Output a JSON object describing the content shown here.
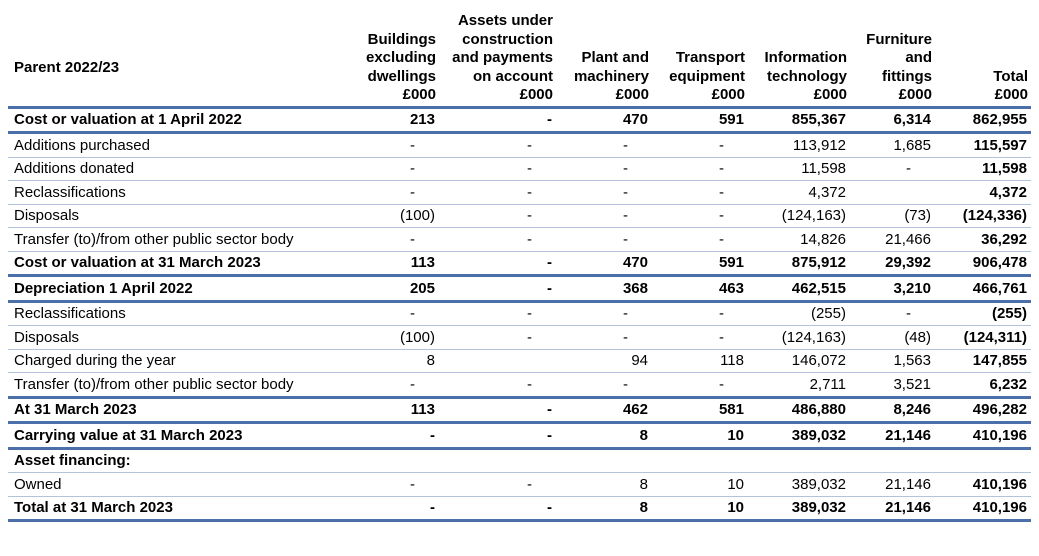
{
  "table": {
    "corner_label": "Parent 2022/23",
    "columns": [
      [
        "Buildings",
        "excluding",
        "dwellings",
        "£000"
      ],
      [
        "Assets under",
        "construction",
        "and payments",
        "on account",
        "£000"
      ],
      [
        "Plant and",
        "machinery",
        "£000"
      ],
      [
        "Transport",
        "equipment",
        "£000"
      ],
      [
        "Information",
        "technology",
        "£000"
      ],
      [
        "Furniture",
        "and",
        "fittings",
        "£000"
      ],
      [
        "Total",
        "£000"
      ]
    ],
    "rows": [
      {
        "label": "Cost or valuation at 1 April 2022",
        "values": [
          "213",
          "-",
          "470",
          "591",
          "855,367",
          "6,314",
          "862,955"
        ],
        "style": "major"
      },
      {
        "label": "Additions purchased",
        "values": [
          "-",
          "-",
          "-",
          "-",
          "113,912",
          "1,685",
          "115,597"
        ],
        "style": "normal"
      },
      {
        "label": "Additions donated",
        "values": [
          "-",
          "-",
          "-",
          "-",
          "11,598",
          "-",
          "11,598"
        ],
        "style": "normal"
      },
      {
        "label": "Reclassifications",
        "values": [
          "-",
          "-",
          "-",
          "-",
          "4,372",
          "",
          "4,372"
        ],
        "style": "normal"
      },
      {
        "label": "Disposals",
        "values": [
          "(100)",
          "-",
          "-",
          "-",
          "(124,163)",
          "(73)",
          "(124,336)"
        ],
        "style": "normal"
      },
      {
        "label": "Transfer (to)/from other public sector body",
        "values": [
          "-",
          "-",
          "-",
          "-",
          "14,826",
          "21,466",
          "36,292"
        ],
        "style": "normal"
      },
      {
        "label": "Cost or valuation at 31 March 2023",
        "values": [
          "113",
          "-",
          "470",
          "591",
          "875,912",
          "29,392",
          "906,478"
        ],
        "style": "major"
      },
      {
        "label": "Depreciation 1 April 2022",
        "values": [
          "205",
          "-",
          "368",
          "463",
          "462,515",
          "3,210",
          "466,761"
        ],
        "style": "major"
      },
      {
        "label": "Reclassifications",
        "values": [
          "-",
          "-",
          "-",
          "-",
          "(255)",
          "-",
          "(255)"
        ],
        "style": "normal"
      },
      {
        "label": "Disposals",
        "values": [
          "(100)",
          "-",
          "-",
          "-",
          "(124,163)",
          "(48)",
          "(124,311)"
        ],
        "style": "normal"
      },
      {
        "label": "Charged during the year",
        "values": [
          "8",
          "",
          "94",
          "118",
          "146,072",
          "1,563",
          "147,855"
        ],
        "style": "normal"
      },
      {
        "label": "Transfer (to)/from other public sector body",
        "values": [
          "-",
          "-",
          "-",
          "-",
          "2,711",
          "3,521",
          "6,232"
        ],
        "style": "before-major"
      },
      {
        "label": "At 31 March 2023",
        "values": [
          "113",
          "-",
          "462",
          "581",
          "486,880",
          "8,246",
          "496,282"
        ],
        "style": "major"
      },
      {
        "label": "Carrying value at 31 March 2023",
        "values": [
          "-",
          "-",
          "8",
          "10",
          "389,032",
          "21,146",
          "410,196"
        ],
        "style": "major"
      },
      {
        "label": "Asset financing:",
        "values": [
          "",
          "",
          "",
          "",
          "",
          "",
          ""
        ],
        "style": "heading"
      },
      {
        "label": "Owned",
        "values": [
          "-",
          "-",
          "8",
          "10",
          "389,032",
          "21,146",
          "410,196"
        ],
        "style": "normal"
      },
      {
        "label": "Total at 31 March 2023",
        "values": [
          "-",
          "-",
          "8",
          "10",
          "389,032",
          "21,146",
          "410,196"
        ],
        "style": "total"
      }
    ]
  }
}
